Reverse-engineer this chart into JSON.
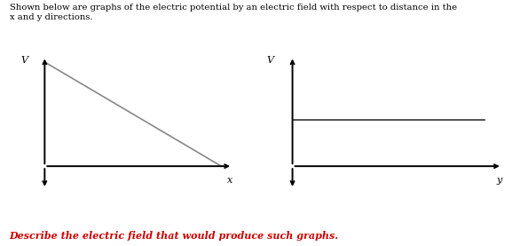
{
  "title_text": "Shown below are graphs of the electric potential by an electric field with respect to distance in the\nx and y directions.",
  "question_text": "Describe the electric field that would produce such graphs.",
  "question_color": "#cc0000",
  "background_color": "#ffffff",
  "graph1": {
    "xlabel": "x",
    "ylabel": "V",
    "line_color": "#888888",
    "line_width": 1.2
  },
  "graph2": {
    "xlabel": "y",
    "ylabel": "V",
    "line_color": "#333333",
    "line_width": 1.2
  },
  "title_fontsize": 7.2,
  "question_fontsize": 8.0,
  "axis_lw": 1.4,
  "arrow_scale": 7
}
